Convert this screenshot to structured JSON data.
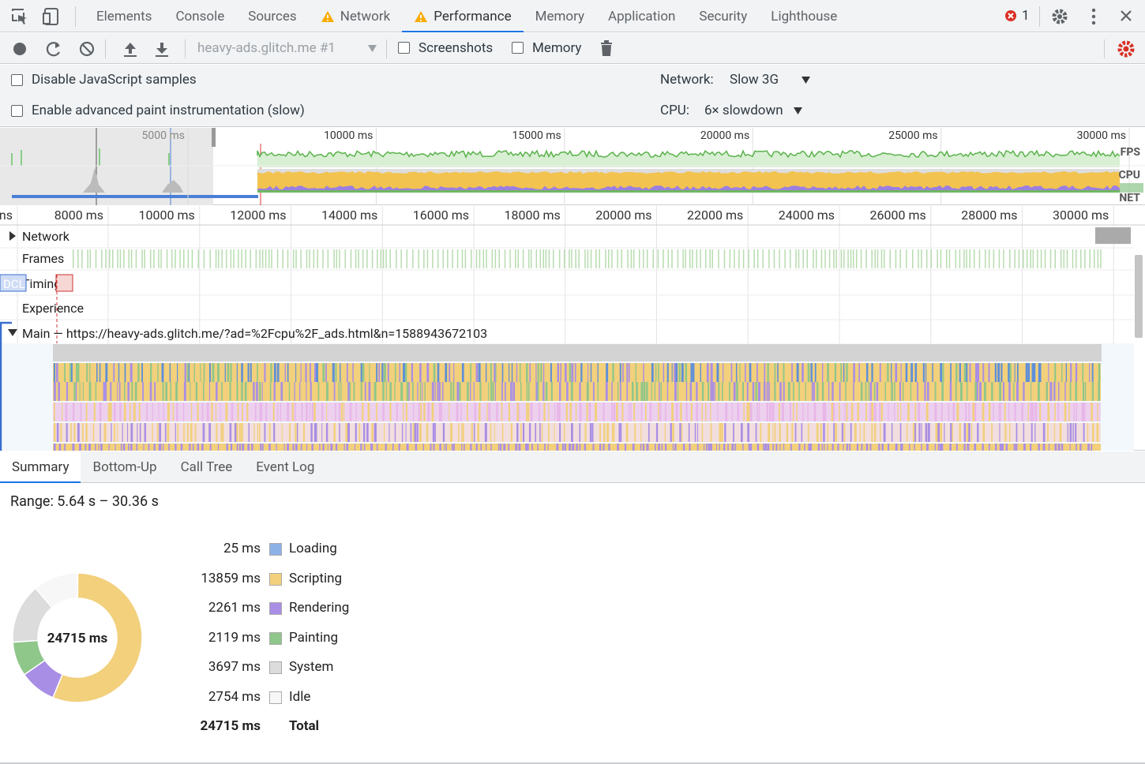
{
  "tabs": [
    {
      "label": "Elements"
    },
    {
      "label": "Console"
    },
    {
      "label": "Sources"
    },
    {
      "label": "Network",
      "warning": true
    },
    {
      "label": "Performance",
      "warning": true,
      "selected": true
    },
    {
      "label": "Memory"
    },
    {
      "label": "Application"
    },
    {
      "label": "Security"
    },
    {
      "label": "Lighthouse"
    }
  ],
  "error_count": "1",
  "toolbar": {
    "target": "heavy-ads.glitch.me #1",
    "screenshots": "Screenshots",
    "memory": "Memory"
  },
  "settings": {
    "js_samples": "Disable JavaScript samples",
    "paint": "Enable advanced paint instrumentation (slow)",
    "network_label": "Network:",
    "network_value": "Slow 3G",
    "cpu_label": "CPU:",
    "cpu_value": "6× slowdown"
  },
  "overview": {
    "ticks": [
      "5000 ms",
      "10000 ms",
      "15000 ms",
      "20000 ms",
      "25000 ms",
      "30000 ms"
    ],
    "lanes": [
      "FPS",
      "CPU",
      "NET"
    ]
  },
  "timeline": {
    "ticks": [
      "ns",
      "8000 ms",
      "10000 ms",
      "12000 ms",
      "14000 ms",
      "16000 ms",
      "18000 ms",
      "20000 ms",
      "22000 ms",
      "24000 ms",
      "26000 ms",
      "28000 ms",
      "30000 ms"
    ],
    "tracks": [
      "Network",
      "Frames",
      "Timings",
      "Experience"
    ],
    "dcl": "DCL",
    "main": "Main — https://heavy-ads.glitch.me/?ad=%2Fcpu%2F_ads.html&n=1588943672103"
  },
  "bottom_tabs": [
    "Summary",
    "Bottom-Up",
    "Call Tree",
    "Event Log"
  ],
  "range": "Range: 5.64 s – 30.36 s",
  "summary": {
    "items": [
      {
        "value": 25,
        "label": "25 ms",
        "name": "Loading",
        "color": "#8cb1e6"
      },
      {
        "value": 13859,
        "label": "13859 ms",
        "name": "Scripting",
        "color": "#f2d07c"
      },
      {
        "value": 2261,
        "label": "2261 ms",
        "name": "Rendering",
        "color": "#a98ee5"
      },
      {
        "value": 2119,
        "label": "2119 ms",
        "name": "Painting",
        "color": "#8fc68a"
      },
      {
        "value": 3697,
        "label": "3697 ms",
        "name": "System",
        "color": "#dcdcdc"
      },
      {
        "value": 2754,
        "label": "2754 ms",
        "name": "Idle",
        "color": "#f7f7f7"
      }
    ],
    "total": {
      "label": "24715 ms",
      "name": "Total"
    }
  }
}
